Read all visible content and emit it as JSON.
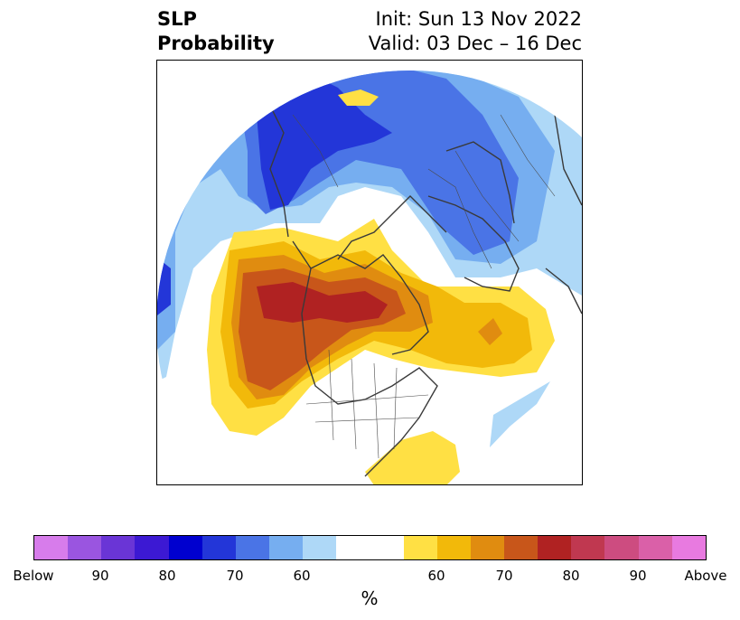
{
  "title": {
    "left_line1": "SLP",
    "left_line2": "Probability",
    "right_line1": "Init: Sun 13 Nov 2022",
    "right_line2": "Valid: 03 Dec – 16 Dec"
  },
  "colorbar": {
    "units": "%",
    "tick_labels": [
      "Below",
      "90",
      "80",
      "70",
      "60",
      "60",
      "70",
      "80",
      "90",
      "Above"
    ],
    "colors": {
      "below": [
        "#d77ceb",
        "#9a55e0",
        "#6a35d6",
        "#3c19d3",
        "#0000cf",
        "#2336d8",
        "#4a74e6",
        "#76aef0",
        "#aed8f7"
      ],
      "neutral": "#ffffff",
      "above": [
        "#ffe044",
        "#f2b90a",
        "#e08c10",
        "#c8561a",
        "#b02222",
        "#c03850",
        "#cd4c80",
        "#da60a8",
        "#e87ae0"
      ]
    }
  }
}
